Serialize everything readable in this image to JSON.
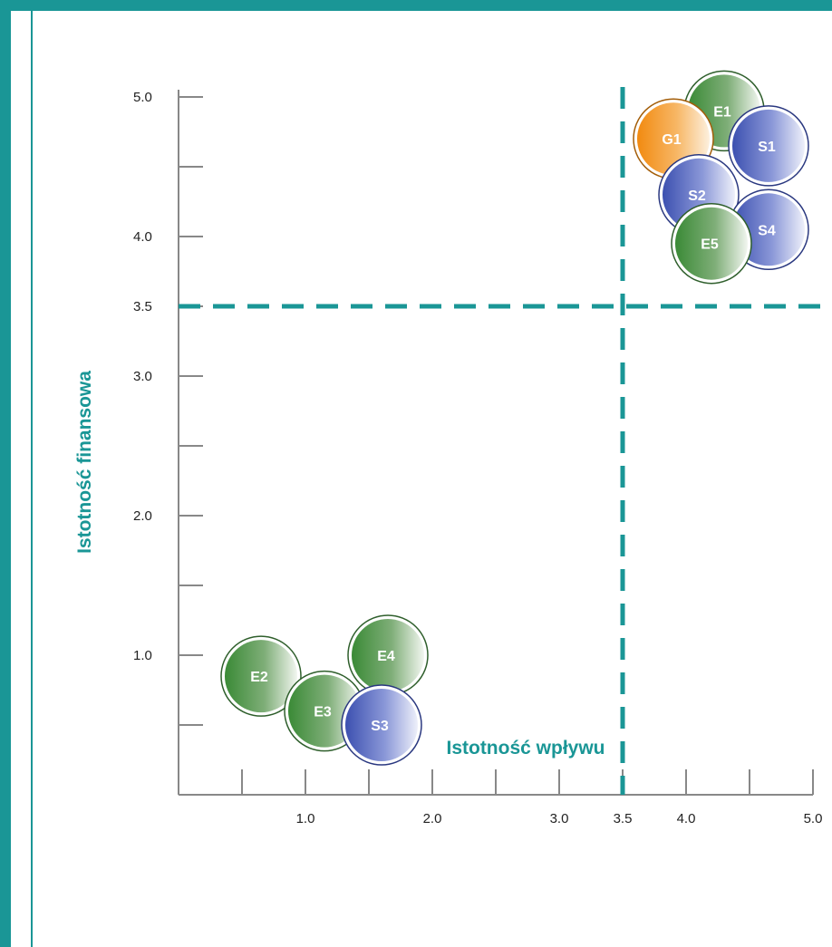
{
  "chart_data": {
    "type": "scatter",
    "title": "",
    "xlabel": "Istotność wpływu",
    "ylabel": "Istotność finansowa",
    "xlim": [
      0,
      5
    ],
    "ylim": [
      0,
      5
    ],
    "x_ticks": [
      0.5,
      1.0,
      1.5,
      2.0,
      2.5,
      3.0,
      3.5,
      4.0,
      4.5,
      5.0
    ],
    "y_ticks": [
      0.5,
      1.0,
      1.5,
      2.0,
      2.5,
      3.0,
      3.5,
      4.0,
      4.5,
      5.0
    ],
    "x_tick_labels": [
      {
        "value": 1.0,
        "label": "1.0"
      },
      {
        "value": 2.0,
        "label": "2.0"
      },
      {
        "value": 3.0,
        "label": "3.0"
      },
      {
        "value": 3.5,
        "label": "3.5"
      },
      {
        "value": 4.0,
        "label": "4.0"
      },
      {
        "value": 5.0,
        "label": "5.0"
      }
    ],
    "y_tick_labels": [
      {
        "value": 1.0,
        "label": "1.0"
      },
      {
        "value": 2.0,
        "label": "2.0"
      },
      {
        "value": 3.0,
        "label": "3.0"
      },
      {
        "value": 3.5,
        "label": "3.5"
      },
      {
        "value": 4.0,
        "label": "4.0"
      },
      {
        "value": 5.0,
        "label": "5.0"
      }
    ],
    "threshold": {
      "x": 3.5,
      "y": 3.5
    },
    "grid": false,
    "legend": "none",
    "colors": {
      "E": "#3e8a3a",
      "S": "#4456b2",
      "G": "#f08c14",
      "accent": "#1a9696",
      "axis": "#888888"
    },
    "points": [
      {
        "label": "E1",
        "group": "E",
        "x": 4.3,
        "y": 4.9
      },
      {
        "label": "S1",
        "group": "S",
        "x": 4.65,
        "y": 4.65
      },
      {
        "label": "G1",
        "group": "G",
        "x": 3.9,
        "y": 4.7
      },
      {
        "label": "S2",
        "group": "S",
        "x": 4.1,
        "y": 4.3
      },
      {
        "label": "S4",
        "group": "S",
        "x": 4.65,
        "y": 4.05
      },
      {
        "label": "E5",
        "group": "E",
        "x": 4.2,
        "y": 3.95
      },
      {
        "label": "E2",
        "group": "E",
        "x": 0.65,
        "y": 0.85
      },
      {
        "label": "E4",
        "group": "E",
        "x": 1.65,
        "y": 1.0
      },
      {
        "label": "E3",
        "group": "E",
        "x": 1.15,
        "y": 0.6
      },
      {
        "label": "S3",
        "group": "S",
        "x": 1.6,
        "y": 0.5
      }
    ]
  }
}
